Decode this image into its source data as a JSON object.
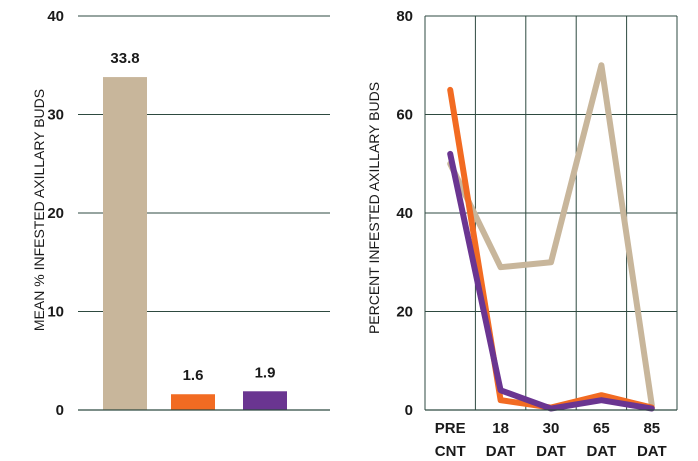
{
  "chart_data": [
    {
      "type": "bar",
      "ylabel": "MEAN % INFESTED AXILLARY BUDS",
      "ylim": [
        0,
        40
      ],
      "yticks": [
        0,
        10,
        20,
        30,
        40
      ],
      "grid": true,
      "values": [
        33.8,
        1.6,
        1.9
      ],
      "value_labels": [
        "33.8",
        "1.6",
        "1.9"
      ],
      "colors": [
        "#c8b69b",
        "#f26b22",
        "#6a3591"
      ]
    },
    {
      "type": "line",
      "ylabel": "PERCENT INFESTED AXILLARY BUDS",
      "ylim": [
        0,
        80
      ],
      "yticks": [
        0,
        20,
        40,
        60,
        80
      ],
      "grid": true,
      "categories": [
        [
          "PRE",
          "CNT"
        ],
        [
          "18",
          "DAT"
        ],
        [
          "30",
          "DAT"
        ],
        [
          "65",
          "DAT"
        ],
        [
          "85",
          "DAT"
        ]
      ],
      "series": [
        {
          "color": "#c8b69b",
          "values": [
            50,
            29,
            30,
            70,
            1
          ]
        },
        {
          "color": "#f26b22",
          "values": [
            65,
            2,
            0.5,
            3,
            0.5
          ]
        },
        {
          "color": "#6a3591",
          "values": [
            52,
            4,
            0.3,
            2,
            0.3
          ]
        }
      ]
    }
  ]
}
